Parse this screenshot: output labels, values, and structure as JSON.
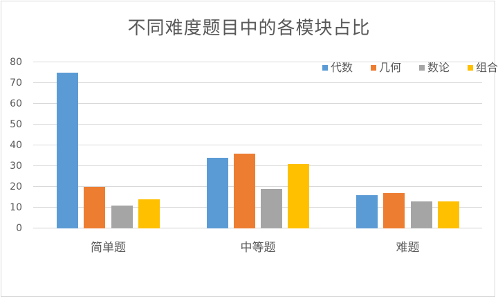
{
  "chart_data": {
    "type": "bar",
    "title": "不同难度题目中的各模块占比",
    "categories": [
      "简单题",
      "中等题",
      "难题"
    ],
    "series": [
      {
        "name": "代数",
        "color": "#5B9BD5",
        "values": [
          75,
          34,
          16
        ]
      },
      {
        "name": "几何",
        "color": "#ED7D31",
        "values": [
          20,
          36,
          17
        ]
      },
      {
        "name": "数论",
        "color": "#A5A5A5",
        "values": [
          11,
          19,
          13
        ]
      },
      {
        "name": "组合",
        "color": "#FFC000",
        "values": [
          14,
          31,
          13
        ]
      }
    ],
    "xlabel": "",
    "ylabel": "",
    "ylim": [
      0,
      80
    ],
    "yticks": [
      0,
      10,
      20,
      30,
      40,
      50,
      60,
      70,
      80
    ],
    "grid": true,
    "legend_position": "top-right"
  },
  "chart": {
    "title": "不同难度题目中的各模块占比",
    "legend": [
      {
        "label": "代数",
        "color": "#5B9BD5"
      },
      {
        "label": "几何",
        "color": "#ED7D31"
      },
      {
        "label": "数论",
        "color": "#A5A5A5"
      },
      {
        "label": "组合",
        "color": "#FFC000"
      }
    ],
    "y_axis": {
      "ticks": [
        "80",
        "70",
        "60",
        "50",
        "40",
        "30",
        "20",
        "10",
        "0"
      ]
    },
    "x_axis": {
      "categories": [
        "简单题",
        "中等题",
        "难题"
      ]
    }
  }
}
